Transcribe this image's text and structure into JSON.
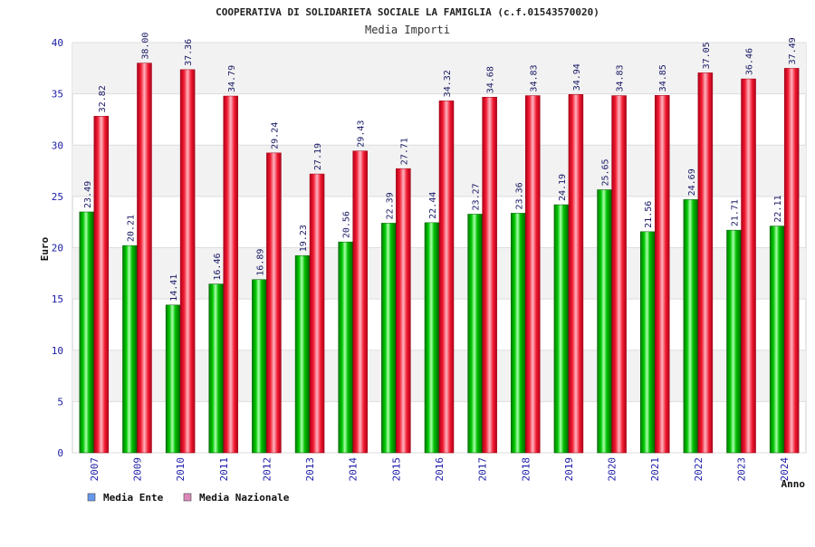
{
  "chart_data": {
    "type": "bar",
    "title": "COOPERATIVA DI SOLIDARIETA SOCIALE LA FAMIGLIA (c.f.01543570020)",
    "subtitle": "Media Importi",
    "xlabel": "Anno",
    "ylabel": "Euro",
    "ylim": [
      0,
      40
    ],
    "yticks": [
      0,
      5,
      10,
      15,
      20,
      25,
      30,
      35,
      40
    ],
    "categories": [
      "2007",
      "2009",
      "2010",
      "2011",
      "2012",
      "2013",
      "2014",
      "2015",
      "2016",
      "2017",
      "2018",
      "2019",
      "2020",
      "2021",
      "2022",
      "2023",
      "2024"
    ],
    "series": [
      {
        "name": "Media Ente",
        "color": "#00aa00",
        "legend_color": "#6699ee",
        "values": [
          23.49,
          20.21,
          14.41,
          16.46,
          16.89,
          19.23,
          20.56,
          22.39,
          22.44,
          23.27,
          23.36,
          24.19,
          25.65,
          21.56,
          24.69,
          21.71,
          22.11
        ],
        "labels": [
          "23.49",
          "20.21",
          "14.41",
          "16.46",
          "16.89",
          "19.23",
          "20.56",
          "22.39",
          "22.44",
          "23.27",
          "23.36",
          "24.19",
          "25.65",
          "21.56",
          "24.69",
          "21.71",
          "22.11"
        ]
      },
      {
        "name": "Media Nazionale",
        "color": "#ee1122",
        "legend_color": "#dd88bb",
        "values": [
          32.82,
          38.0,
          37.36,
          34.79,
          29.24,
          27.19,
          29.43,
          27.71,
          34.32,
          34.68,
          34.83,
          34.94,
          34.83,
          34.85,
          37.05,
          36.46,
          37.49
        ],
        "labels": [
          "32.82",
          "38.00",
          "37.36",
          "34.79",
          "29.24",
          "27.19",
          "29.43",
          "27.71",
          "34.32",
          "34.68",
          "34.83",
          "34.94",
          "34.83",
          "34.85",
          "37.05",
          "36.46",
          "37.49"
        ]
      }
    ]
  }
}
